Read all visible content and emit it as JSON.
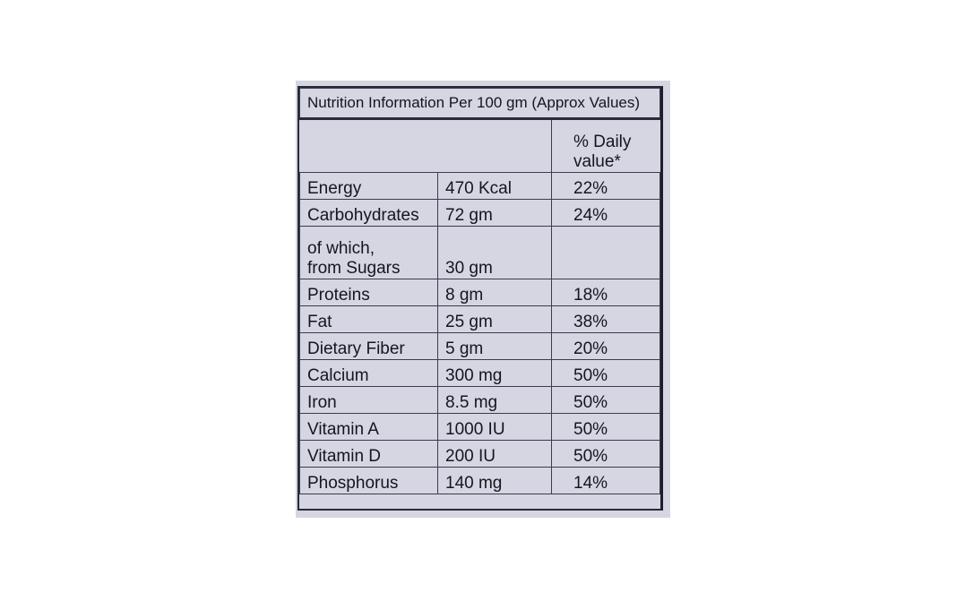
{
  "table": {
    "title": "Nutrition Information Per 100 gm (Approx Values)",
    "header": {
      "col1": "",
      "col2": "",
      "col3_line1": "% Daily",
      "col3_line2": "value*"
    },
    "rows": [
      {
        "nutrient": "Energy",
        "amount": "470 Kcal",
        "daily": "22%"
      },
      {
        "nutrient": "Carbohydrates",
        "amount": "72 gm",
        "daily": "24%"
      },
      {
        "nutrient_line1": "of which,",
        "nutrient_line2": "from Sugars",
        "amount": "30 gm",
        "daily": ""
      },
      {
        "nutrient": "Proteins",
        "amount": "8 gm",
        "daily": "18%"
      },
      {
        "nutrient": "Fat",
        "amount": "25 gm",
        "daily": "38%"
      },
      {
        "nutrient": "Dietary Fiber",
        "amount": "5 gm",
        "daily": "20%"
      },
      {
        "nutrient": "Calcium",
        "amount": "300 mg",
        "daily": "50%"
      },
      {
        "nutrient": "Iron",
        "amount": "8.5 mg",
        "daily": "50%"
      },
      {
        "nutrient": "Vitamin A",
        "amount": "1000 IU",
        "daily": "50%"
      },
      {
        "nutrient": "Vitamin D",
        "amount": "200 IU",
        "daily": "50%"
      },
      {
        "nutrient": "Phosphorus",
        "amount": "140 mg",
        "daily": "14%"
      }
    ]
  }
}
